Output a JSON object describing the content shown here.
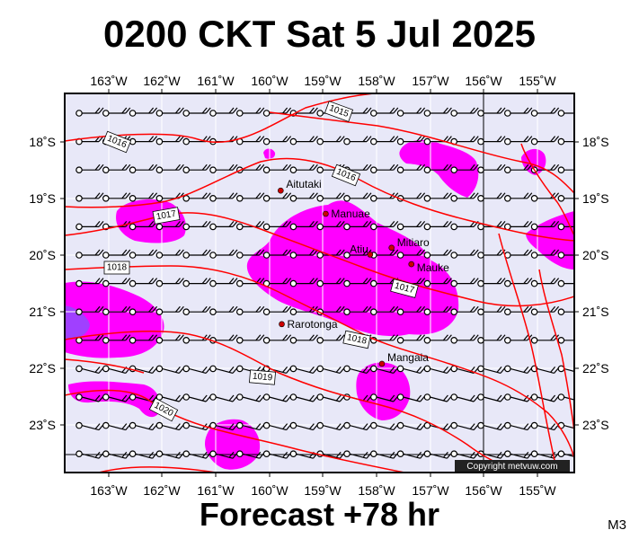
{
  "title": "0200 CKT Sat 5 Jul 2025",
  "subtitle": "Forecast +78 hr",
  "code": "M3",
  "copyright": "Copyright metvuw.com",
  "lon_labels": [
    "163˚W",
    "162˚W",
    "161˚W",
    "160˚W",
    "159˚W",
    "158˚W",
    "157˚W",
    "156˚W",
    "155˚W"
  ],
  "lat_labels": [
    "18˚S",
    "19˚S",
    "20˚S",
    "21˚S",
    "22˚S",
    "23˚S"
  ],
  "places": [
    {
      "name": "Aitutaki",
      "lon": -159.79,
      "lat": -18.86
    },
    {
      "name": "Manuae",
      "lon": -158.95,
      "lat": -19.27
    },
    {
      "name": "Atiu",
      "lon": -158.12,
      "lat": -19.99
    },
    {
      "name": "Mitiaro",
      "lon": -157.72,
      "lat": -19.87
    },
    {
      "name": "Mauke",
      "lon": -157.35,
      "lat": -20.16
    },
    {
      "name": "Rarotonga",
      "lon": -159.77,
      "lat": -21.22
    },
    {
      "name": "Mangaia",
      "lon": -157.9,
      "lat": -21.92
    }
  ],
  "isobar_labels": [
    "1015",
    "1016",
    "1016",
    "1017",
    "1017",
    "1018",
    "1018",
    "1019",
    "1020"
  ],
  "colors": {
    "background": "#e8e8f8",
    "rain": "#ff00ff",
    "heavy_rain": "#a040ff",
    "isobar": "#ff0000",
    "town": "#cc0000"
  }
}
